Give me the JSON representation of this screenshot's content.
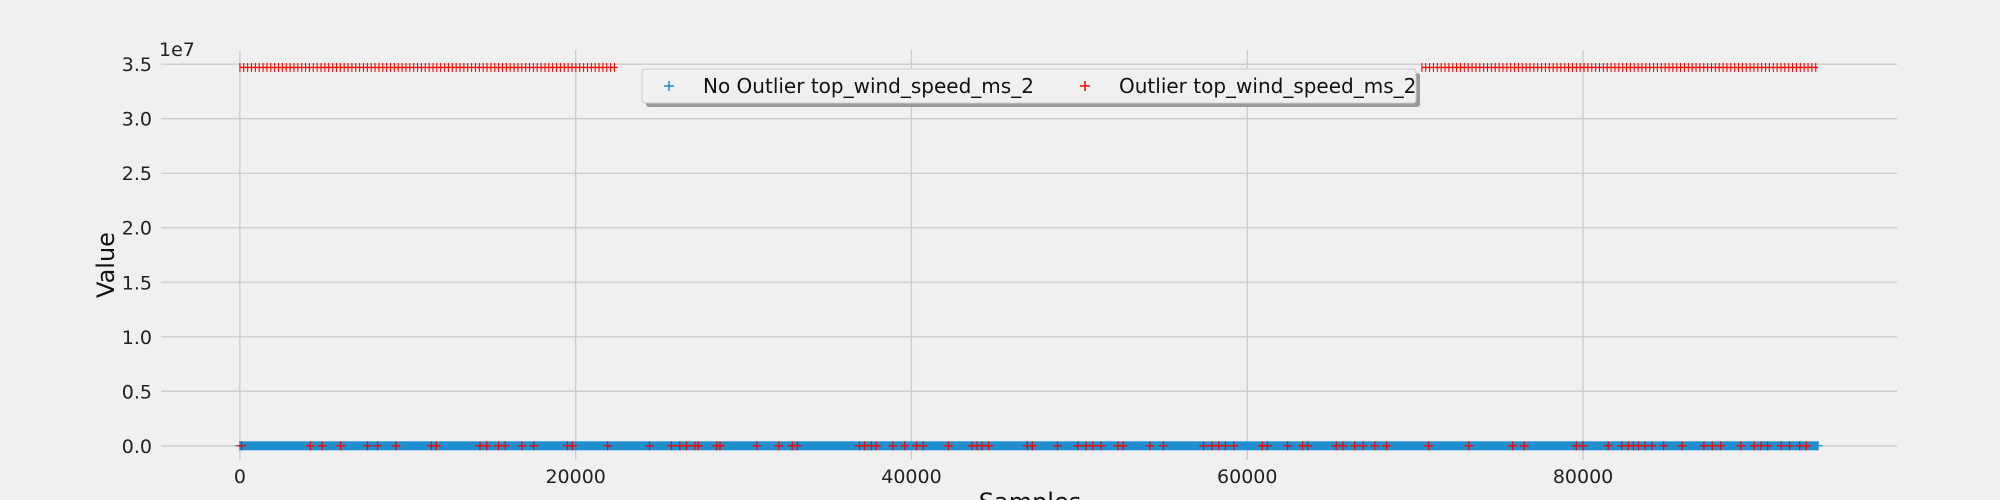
{
  "chart_data": {
    "type": "scatter",
    "title": "",
    "xlabel": "Samples",
    "ylabel": "Value",
    "y_offset_label": "1e7",
    "xlim": [
      -4700,
      98700
    ],
    "ylim": [
      -1.3,
      36.3
    ],
    "y_scale_factor": 10000000,
    "x_ticks": [
      0,
      20000,
      40000,
      60000,
      80000
    ],
    "x_tick_labels": [
      "0",
      "20000",
      "40000",
      "60000",
      "80000"
    ],
    "y_ticks": [
      0,
      5,
      10,
      15,
      20,
      25,
      30,
      35
    ],
    "y_tick_labels": [
      "0.0",
      "0.5",
      "1.0",
      "1.5",
      "2.0",
      "2.5",
      "3.0",
      "3.5"
    ],
    "grid": true,
    "legend_position": "top-center",
    "series": [
      {
        "name": "No Outlier top_wind_speed_ms_2",
        "color": "#1f8fd0",
        "marker": "+",
        "x_range": [
          0,
          94000
        ],
        "y_value": 0
      },
      {
        "name": "Outlier top_wind_speed_ms_2",
        "color": "#ff0000",
        "marker": "+",
        "high_level_y": 34.7,
        "high_level_x_segments": [
          [
            0,
            22500
          ],
          [
            70400,
            94000
          ]
        ],
        "low_level_x": [
          100,
          4200,
          4900,
          6000,
          7600,
          8200,
          9300,
          11400,
          11700,
          14300,
          14700,
          15400,
          15800,
          16800,
          17500,
          19500,
          19800,
          21900,
          24400,
          25700,
          26200,
          26600,
          27100,
          27300,
          28400,
          28600,
          30800,
          32100,
          32900,
          33200,
          36900,
          37200,
          37600,
          37900,
          38900,
          39600,
          40300,
          40700,
          42200,
          43600,
          43900,
          44200,
          44600,
          46900,
          47200,
          48700,
          49900,
          50400,
          50800,
          51300,
          52300,
          52600,
          54200,
          55000,
          57400,
          57900,
          58300,
          58700,
          59200,
          60900,
          61200,
          62400,
          63300,
          63600,
          65300,
          65700,
          66400,
          66900,
          67600,
          68300,
          70800,
          73200,
          75800,
          76500,
          79600,
          80000,
          81500,
          82300,
          82700,
          83000,
          83300,
          83700,
          84100,
          84800,
          85900,
          87200,
          87700,
          88200,
          89400,
          90200,
          90600,
          91000,
          91800,
          92300,
          92900,
          93300
        ]
      }
    ]
  }
}
